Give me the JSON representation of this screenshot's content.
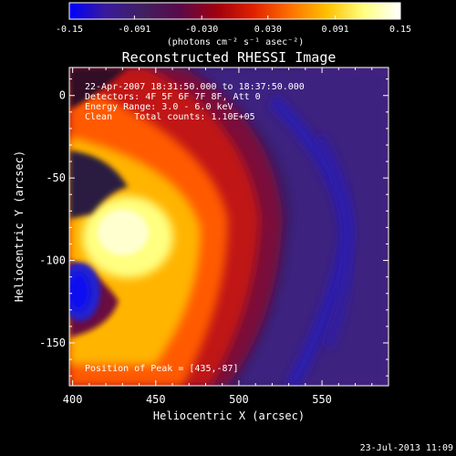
{
  "colorbar": {
    "ticks": [
      "-0.15",
      "-0.091",
      "-0.030",
      "0.030",
      "0.091",
      "0.15"
    ],
    "tick_values": [
      -0.15,
      -0.091,
      -0.03,
      0.03,
      0.091,
      0.15
    ],
    "range": [
      -0.15,
      0.15
    ],
    "unit_label": "(photons cm⁻² s⁻¹ asec⁻²)",
    "colors": [
      "#0000ff",
      "#3a1a9a",
      "#402060",
      "#5a0a4a",
      "#a00010",
      "#e02000",
      "#ff7000",
      "#ffc000",
      "#ffff80",
      "#ffffff"
    ]
  },
  "info": {
    "time_range": "22-Apr-2007 18:31:50.000 to 18:37:50.000",
    "detectors": "Detectors: 4F 5F 6F 7F 8F, Att 0",
    "energy": "Energy Range: 3.0 - 6.0 keV",
    "clean": "Clean    Total counts: 1.10E+05",
    "peak": "Position of Peak = [435,-87]"
  },
  "footer": {
    "timestamp": "23-Jul-2013 11:09"
  },
  "chart_data": {
    "type": "heatmap",
    "title": "Reconstructed RHESSI Image",
    "xlabel": "Heliocentric X (arcsec)",
    "ylabel": "Heliocentric Y (arcsec)",
    "xlim": [
      398,
      590
    ],
    "ylim": [
      -176,
      17
    ],
    "xticks": [
      400,
      450,
      500,
      550
    ],
    "yticks": [
      0,
      -50,
      -100,
      -150
    ],
    "peak": [
      435,
      -87
    ],
    "grid": false,
    "legend": "colorbar-top"
  }
}
